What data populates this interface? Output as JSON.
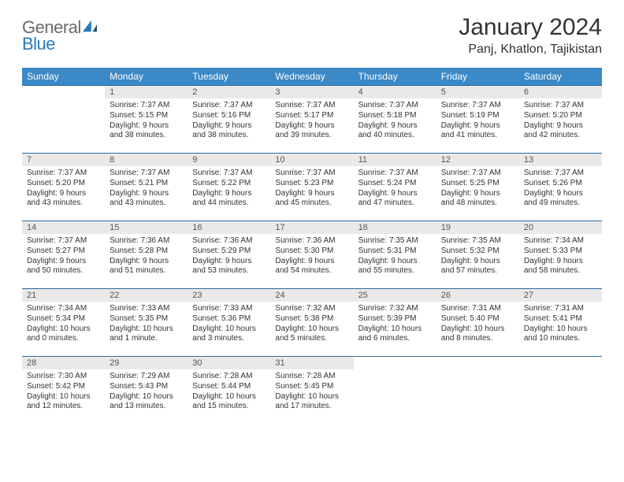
{
  "logo": {
    "general": "General",
    "blue": "Blue"
  },
  "title": {
    "month": "January 2024",
    "location": "Panj, Khatlon, Tajikistan"
  },
  "theme": {
    "header_bg": "#3b89c7",
    "header_text": "#ffffff",
    "daynum_bg": "#e9e9e9",
    "daynum_text": "#555555",
    "row_border": "#2f6b9e",
    "body_text": "#333333",
    "page_bg": "#ffffff"
  },
  "layout": {
    "first_weekday_index": 1,
    "num_days": 31,
    "cols": 7
  },
  "weekdays": [
    "Sunday",
    "Monday",
    "Tuesday",
    "Wednesday",
    "Thursday",
    "Friday",
    "Saturday"
  ],
  "days": {
    "1": {
      "sunrise": "Sunrise: 7:37 AM",
      "sunset": "Sunset: 5:15 PM",
      "day1": "Daylight: 9 hours",
      "day2": "and 38 minutes."
    },
    "2": {
      "sunrise": "Sunrise: 7:37 AM",
      "sunset": "Sunset: 5:16 PM",
      "day1": "Daylight: 9 hours",
      "day2": "and 38 minutes."
    },
    "3": {
      "sunrise": "Sunrise: 7:37 AM",
      "sunset": "Sunset: 5:17 PM",
      "day1": "Daylight: 9 hours",
      "day2": "and 39 minutes."
    },
    "4": {
      "sunrise": "Sunrise: 7:37 AM",
      "sunset": "Sunset: 5:18 PM",
      "day1": "Daylight: 9 hours",
      "day2": "and 40 minutes."
    },
    "5": {
      "sunrise": "Sunrise: 7:37 AM",
      "sunset": "Sunset: 5:19 PM",
      "day1": "Daylight: 9 hours",
      "day2": "and 41 minutes."
    },
    "6": {
      "sunrise": "Sunrise: 7:37 AM",
      "sunset": "Sunset: 5:20 PM",
      "day1": "Daylight: 9 hours",
      "day2": "and 42 minutes."
    },
    "7": {
      "sunrise": "Sunrise: 7:37 AM",
      "sunset": "Sunset: 5:20 PM",
      "day1": "Daylight: 9 hours",
      "day2": "and 43 minutes."
    },
    "8": {
      "sunrise": "Sunrise: 7:37 AM",
      "sunset": "Sunset: 5:21 PM",
      "day1": "Daylight: 9 hours",
      "day2": "and 43 minutes."
    },
    "9": {
      "sunrise": "Sunrise: 7:37 AM",
      "sunset": "Sunset: 5:22 PM",
      "day1": "Daylight: 9 hours",
      "day2": "and 44 minutes."
    },
    "10": {
      "sunrise": "Sunrise: 7:37 AM",
      "sunset": "Sunset: 5:23 PM",
      "day1": "Daylight: 9 hours",
      "day2": "and 45 minutes."
    },
    "11": {
      "sunrise": "Sunrise: 7:37 AM",
      "sunset": "Sunset: 5:24 PM",
      "day1": "Daylight: 9 hours",
      "day2": "and 47 minutes."
    },
    "12": {
      "sunrise": "Sunrise: 7:37 AM",
      "sunset": "Sunset: 5:25 PM",
      "day1": "Daylight: 9 hours",
      "day2": "and 48 minutes."
    },
    "13": {
      "sunrise": "Sunrise: 7:37 AM",
      "sunset": "Sunset: 5:26 PM",
      "day1": "Daylight: 9 hours",
      "day2": "and 49 minutes."
    },
    "14": {
      "sunrise": "Sunrise: 7:37 AM",
      "sunset": "Sunset: 5:27 PM",
      "day1": "Daylight: 9 hours",
      "day2": "and 50 minutes."
    },
    "15": {
      "sunrise": "Sunrise: 7:36 AM",
      "sunset": "Sunset: 5:28 PM",
      "day1": "Daylight: 9 hours",
      "day2": "and 51 minutes."
    },
    "16": {
      "sunrise": "Sunrise: 7:36 AM",
      "sunset": "Sunset: 5:29 PM",
      "day1": "Daylight: 9 hours",
      "day2": "and 53 minutes."
    },
    "17": {
      "sunrise": "Sunrise: 7:36 AM",
      "sunset": "Sunset: 5:30 PM",
      "day1": "Daylight: 9 hours",
      "day2": "and 54 minutes."
    },
    "18": {
      "sunrise": "Sunrise: 7:35 AM",
      "sunset": "Sunset: 5:31 PM",
      "day1": "Daylight: 9 hours",
      "day2": "and 55 minutes."
    },
    "19": {
      "sunrise": "Sunrise: 7:35 AM",
      "sunset": "Sunset: 5:32 PM",
      "day1": "Daylight: 9 hours",
      "day2": "and 57 minutes."
    },
    "20": {
      "sunrise": "Sunrise: 7:34 AM",
      "sunset": "Sunset: 5:33 PM",
      "day1": "Daylight: 9 hours",
      "day2": "and 58 minutes."
    },
    "21": {
      "sunrise": "Sunrise: 7:34 AM",
      "sunset": "Sunset: 5:34 PM",
      "day1": "Daylight: 10 hours",
      "day2": "and 0 minutes."
    },
    "22": {
      "sunrise": "Sunrise: 7:33 AM",
      "sunset": "Sunset: 5:35 PM",
      "day1": "Daylight: 10 hours",
      "day2": "and 1 minute."
    },
    "23": {
      "sunrise": "Sunrise: 7:33 AM",
      "sunset": "Sunset: 5:36 PM",
      "day1": "Daylight: 10 hours",
      "day2": "and 3 minutes."
    },
    "24": {
      "sunrise": "Sunrise: 7:32 AM",
      "sunset": "Sunset: 5:38 PM",
      "day1": "Daylight: 10 hours",
      "day2": "and 5 minutes."
    },
    "25": {
      "sunrise": "Sunrise: 7:32 AM",
      "sunset": "Sunset: 5:39 PM",
      "day1": "Daylight: 10 hours",
      "day2": "and 6 minutes."
    },
    "26": {
      "sunrise": "Sunrise: 7:31 AM",
      "sunset": "Sunset: 5:40 PM",
      "day1": "Daylight: 10 hours",
      "day2": "and 8 minutes."
    },
    "27": {
      "sunrise": "Sunrise: 7:31 AM",
      "sunset": "Sunset: 5:41 PM",
      "day1": "Daylight: 10 hours",
      "day2": "and 10 minutes."
    },
    "28": {
      "sunrise": "Sunrise: 7:30 AM",
      "sunset": "Sunset: 5:42 PM",
      "day1": "Daylight: 10 hours",
      "day2": "and 12 minutes."
    },
    "29": {
      "sunrise": "Sunrise: 7:29 AM",
      "sunset": "Sunset: 5:43 PM",
      "day1": "Daylight: 10 hours",
      "day2": "and 13 minutes."
    },
    "30": {
      "sunrise": "Sunrise: 7:28 AM",
      "sunset": "Sunset: 5:44 PM",
      "day1": "Daylight: 10 hours",
      "day2": "and 15 minutes."
    },
    "31": {
      "sunrise": "Sunrise: 7:28 AM",
      "sunset": "Sunset: 5:45 PM",
      "day1": "Daylight: 10 hours",
      "day2": "and 17 minutes."
    }
  }
}
